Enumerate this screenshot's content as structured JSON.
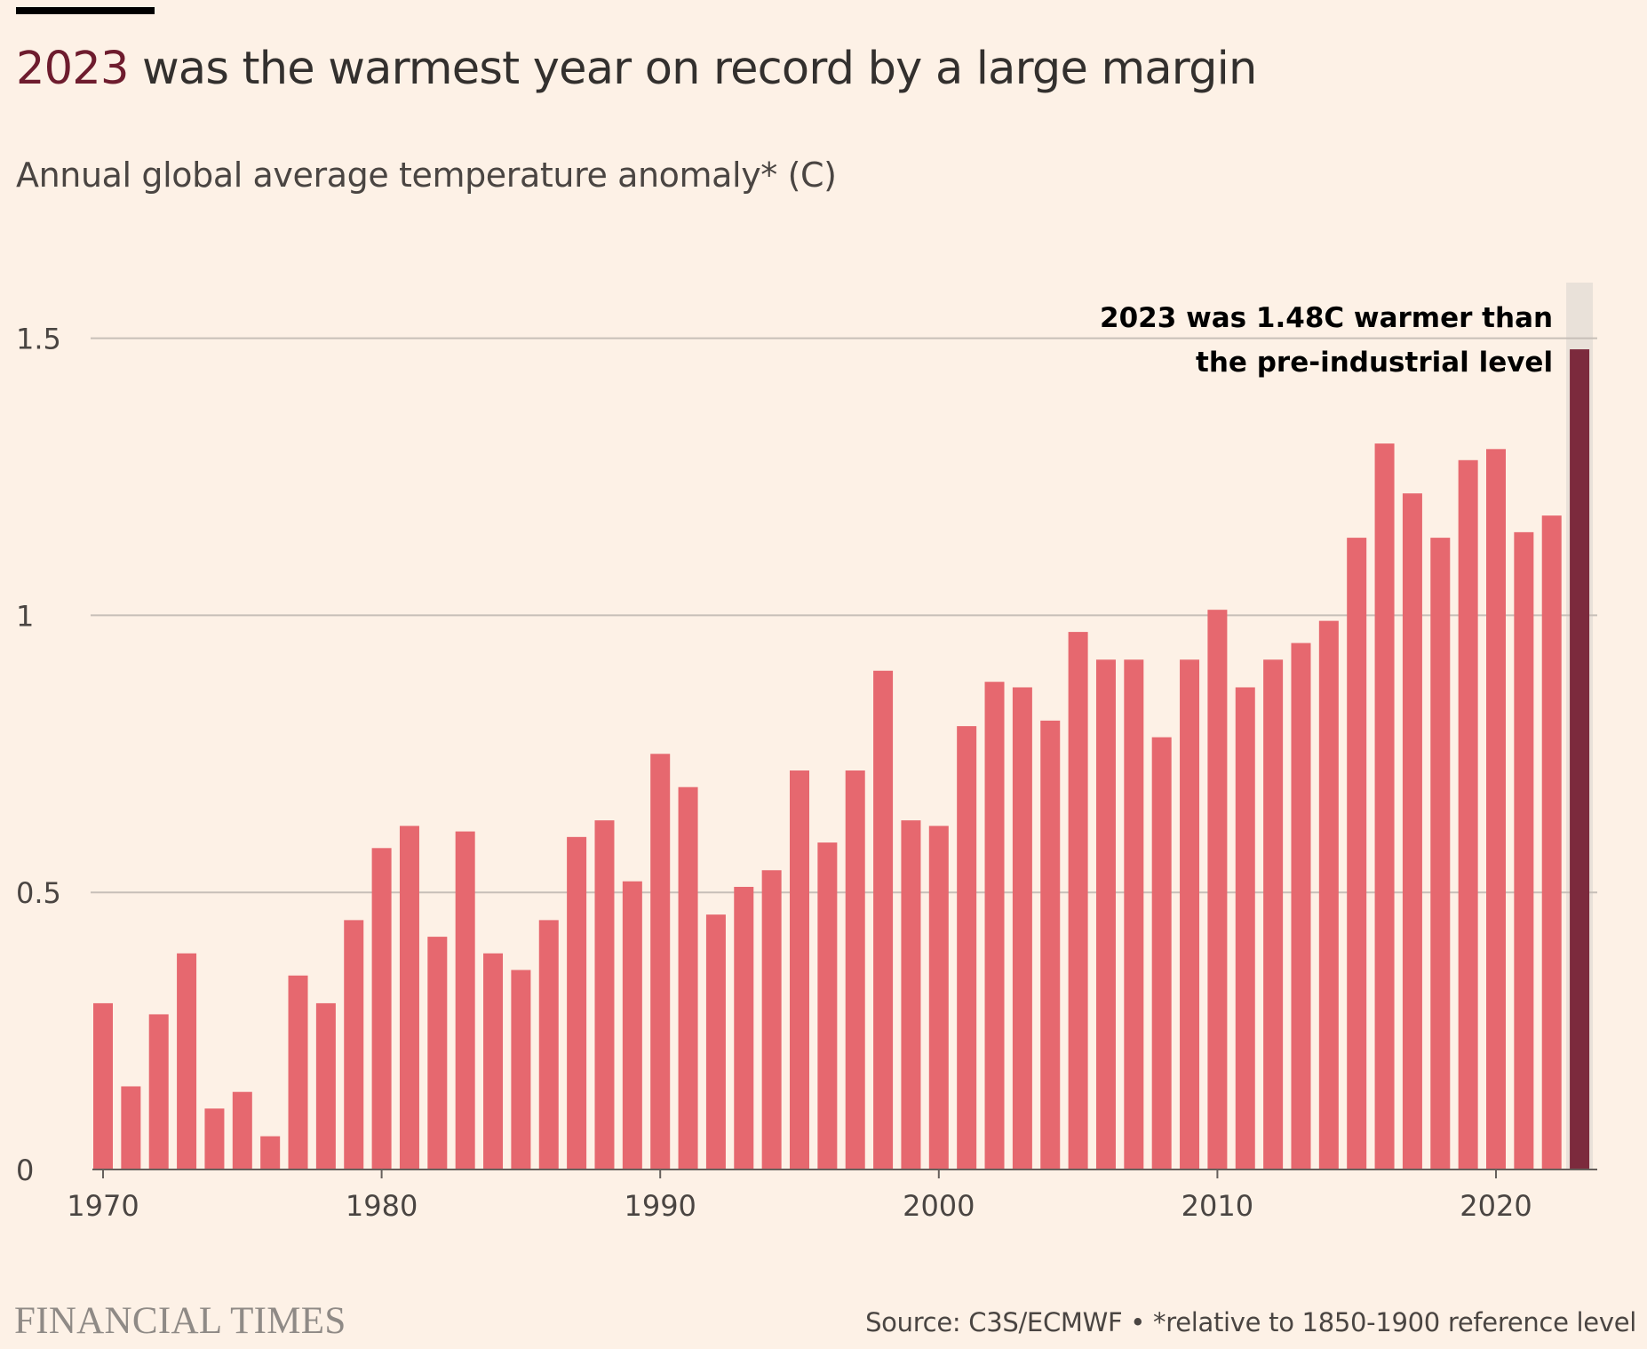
{
  "header": {
    "title_highlight": "2023",
    "title_rest": " was the warmest year on record by a large margin",
    "subtitle": "Annual global average temperature anomaly* (C)"
  },
  "footer": {
    "brand": "FINANCIAL TIMES",
    "source": "Source: C3S/ECMWF • *relative to 1850-1900 reference level"
  },
  "colors": {
    "bar": "#e6686f",
    "highlight_bar": "#7c2a3d",
    "highlight_band": "#e9e1d9",
    "title_highlight": "#6e1c2e",
    "gridline": "#c7bfb8",
    "background": "#fdf1e6"
  },
  "chart_data": {
    "type": "bar",
    "title": "2023 was the warmest year on record by a large margin",
    "subtitle": "Annual global average temperature anomaly* (C)",
    "xlabel": "",
    "ylabel": "",
    "x_ticks": [
      1970,
      1980,
      1990,
      2000,
      2010,
      2020
    ],
    "y_ticks": [
      0,
      0.5,
      1,
      1.5
    ],
    "y_tick_labels": [
      "0",
      "0.5",
      "1",
      "1.5"
    ],
    "ylim": [
      0,
      1.6
    ],
    "grid": true,
    "legend": "none",
    "highlight_year": 2023,
    "categories": [
      1970,
      1971,
      1972,
      1973,
      1974,
      1975,
      1976,
      1977,
      1978,
      1979,
      1980,
      1981,
      1982,
      1983,
      1984,
      1985,
      1986,
      1987,
      1988,
      1989,
      1990,
      1991,
      1992,
      1993,
      1994,
      1995,
      1996,
      1997,
      1998,
      1999,
      2000,
      2001,
      2002,
      2003,
      2004,
      2005,
      2006,
      2007,
      2008,
      2009,
      2010,
      2011,
      2012,
      2013,
      2014,
      2015,
      2016,
      2017,
      2018,
      2019,
      2020,
      2021,
      2022,
      2023
    ],
    "values": [
      0.3,
      0.15,
      0.28,
      0.39,
      0.11,
      0.14,
      0.06,
      0.35,
      0.3,
      0.45,
      0.58,
      0.62,
      0.42,
      0.61,
      0.39,
      0.36,
      0.45,
      0.6,
      0.63,
      0.52,
      0.75,
      0.69,
      0.46,
      0.51,
      0.54,
      0.72,
      0.59,
      0.72,
      0.9,
      0.63,
      0.62,
      0.8,
      0.88,
      0.87,
      0.81,
      0.97,
      0.92,
      0.92,
      0.78,
      0.92,
      1.01,
      0.87,
      0.92,
      0.95,
      0.99,
      1.14,
      1.31,
      1.22,
      1.14,
      1.28,
      1.3,
      1.15,
      1.18,
      1.48
    ],
    "annotation": {
      "line1": "2023 was 1.48C warmer than",
      "line2": "the pre-industrial level"
    }
  }
}
